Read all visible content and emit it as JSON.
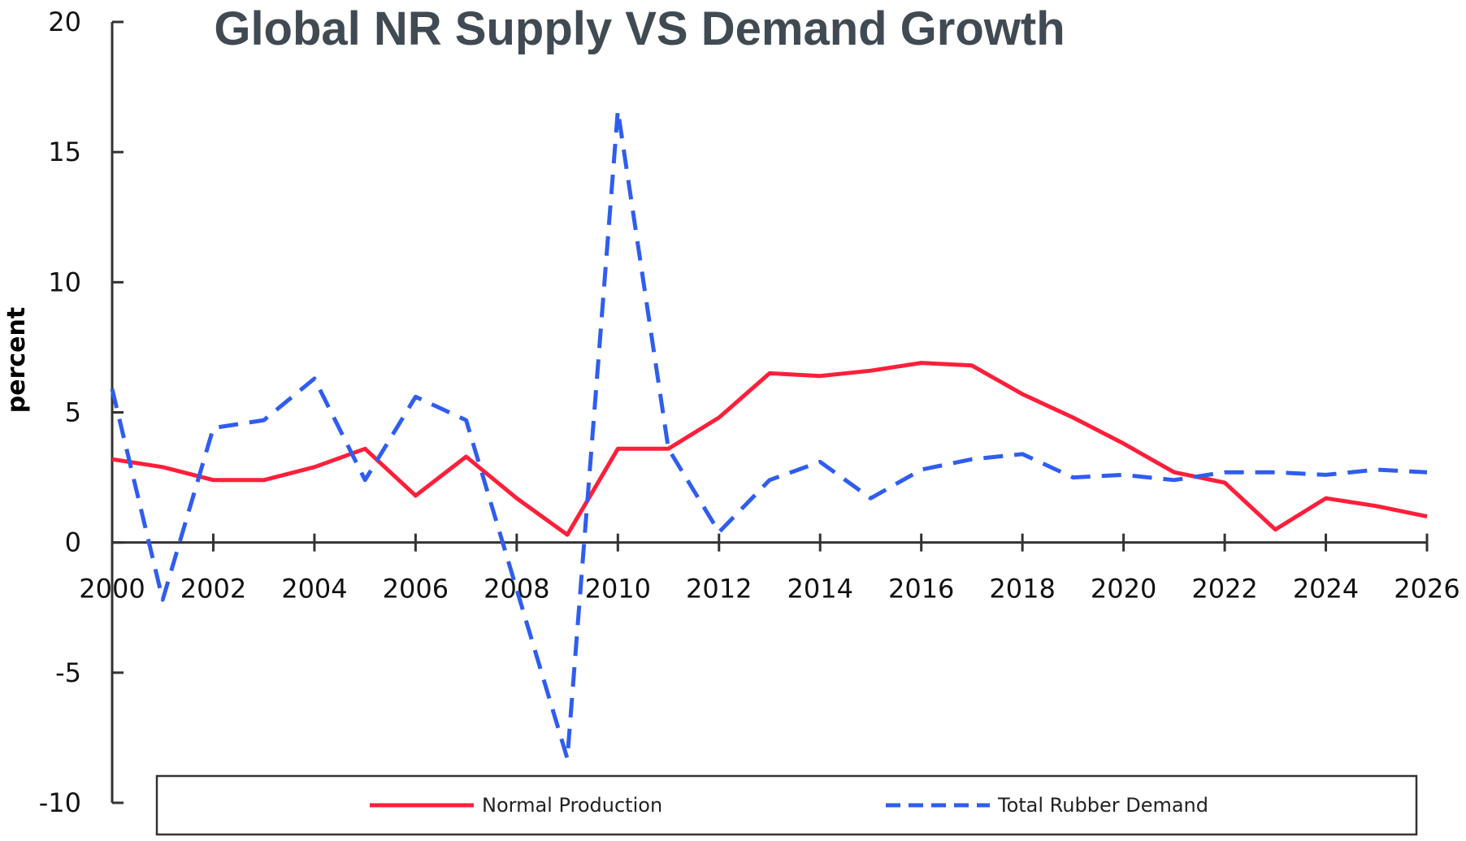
{
  "chart_data": {
    "type": "line",
    "title": "Global NR Supply VS Demand Growth",
    "xlabel": "",
    "ylabel": "percent",
    "xlim": [
      2000,
      2026
    ],
    "ylim": [
      -10,
      20
    ],
    "x_ticks": [
      "2000",
      "2002",
      "2004",
      "2006",
      "2008",
      "2010",
      "2012",
      "2014",
      "2016",
      "2018",
      "2020",
      "2022",
      "2024",
      "2026"
    ],
    "y_ticks": [
      "20",
      "15",
      "10",
      "5",
      "0",
      "-5",
      "-10"
    ],
    "x": [
      2000,
      2001,
      2002,
      2003,
      2004,
      2005,
      2006,
      2007,
      2008,
      2009,
      2010,
      2011,
      2012,
      2013,
      2014,
      2015,
      2016,
      2017,
      2018,
      2019,
      2020,
      2021,
      2022,
      2023,
      2024,
      2025,
      2026
    ],
    "series": [
      {
        "name": "Normal Production",
        "color": "#ff1f3a",
        "style": "solid",
        "values": [
          3.2,
          2.9,
          2.4,
          2.4,
          2.9,
          3.6,
          1.8,
          3.3,
          1.7,
          0.3,
          3.6,
          3.6,
          4.8,
          6.5,
          6.4,
          6.6,
          6.9,
          6.8,
          5.7,
          4.8,
          3.8,
          2.7,
          2.3,
          0.5,
          1.7,
          1.4,
          1.0
        ]
      },
      {
        "name": "Total Rubber Demand",
        "color": "#2f5df0",
        "style": "dashed",
        "values": [
          5.9,
          -2.2,
          4.4,
          4.7,
          6.3,
          2.4,
          5.6,
          4.7,
          -1.8,
          -8.3,
          16.6,
          3.6,
          0.4,
          2.4,
          3.1,
          1.7,
          2.8,
          3.2,
          3.4,
          2.5,
          2.6,
          2.4,
          2.7,
          2.7,
          2.6,
          2.8,
          2.7
        ]
      }
    ],
    "legend_position": "bottom",
    "grid": false
  }
}
